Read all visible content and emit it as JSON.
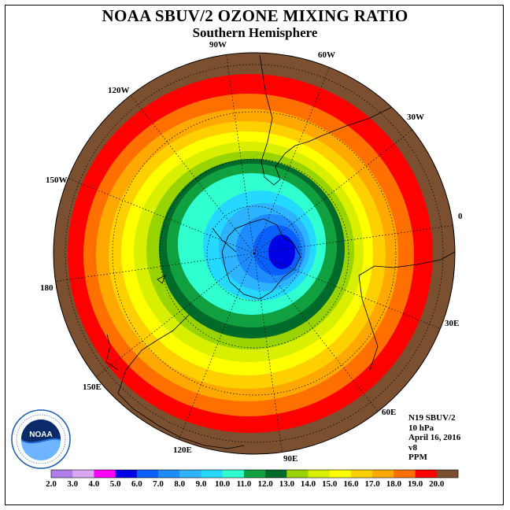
{
  "title": "NOAA SBUV/2 OZONE MIXING RATIO",
  "subtitle": "Southern Hemisphere",
  "longitude_labels": [
    "90W",
    "60W",
    "30W",
    "0",
    "30E",
    "60E",
    "90E",
    "120E",
    "150E",
    "180",
    "150W",
    "120W"
  ],
  "info": {
    "instrument": "N19 SBUV/2",
    "pressure": "10 hPa",
    "date": "April 16, 2016",
    "version": "v8",
    "units": "PPM"
  },
  "logo_text": "NOAA",
  "colorbar": {
    "labels": [
      "2.0",
      "3.0",
      "4.0",
      "5.0",
      "6.0",
      "7.0",
      "8.0",
      "9.0",
      "10.0",
      "11.0",
      "12.0",
      "13.0",
      "14.0",
      "15.0",
      "16.0",
      "17.0",
      "18.0",
      "19.0",
      "20.0"
    ],
    "colors": [
      "#b07de8",
      "#d9a8f2",
      "#ff00ff",
      "#0000e6",
      "#0a60ff",
      "#1e8cff",
      "#2eb4ff",
      "#25d8ff",
      "#30ffd0",
      "#10a040",
      "#006a2a",
      "#9ad400",
      "#d8ef00",
      "#ffff00",
      "#ffd000",
      "#ffa800",
      "#ff7000",
      "#ff0000",
      "#7a5030"
    ]
  },
  "map_fill_levels": [
    "#7a5030",
    "#ff0000",
    "#ff7000",
    "#ffa800",
    "#ffd000",
    "#ffff00",
    "#d8ef00",
    "#9ad400",
    "#006a2a",
    "#10a040",
    "#30ffd0",
    "#25d8ff",
    "#2eb4ff",
    "#1e8cff",
    "#0a60ff",
    "#0000e6"
  ]
}
